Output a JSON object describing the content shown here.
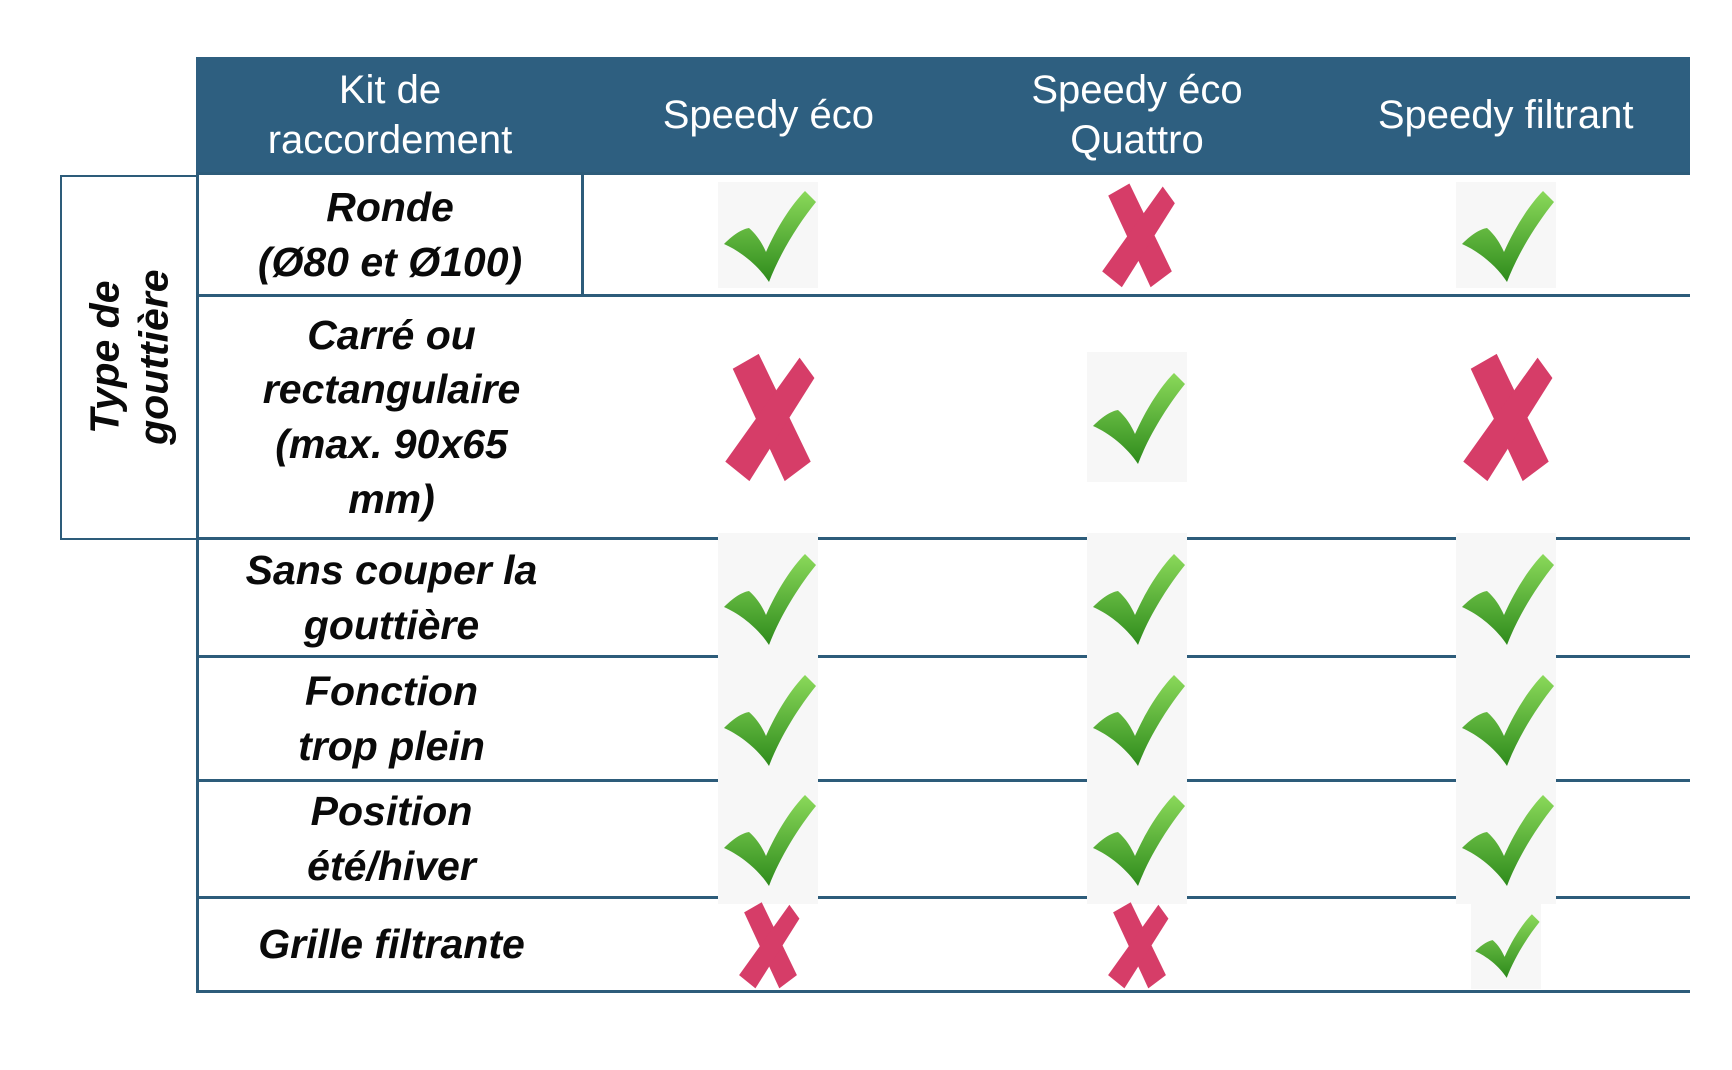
{
  "table": {
    "corner_header": "Kit de\nraccordement",
    "product_columns": [
      "Speedy éco",
      "Speedy éco\nQuattro",
      "Speedy filtrant"
    ],
    "row_group": {
      "label": "Type de\ngouttière",
      "applies_to_rows": [
        0,
        1
      ]
    },
    "rows": [
      {
        "label": "Ronde\n(Ø80 et Ø100)",
        "values": [
          "yes",
          "no",
          "yes"
        ]
      },
      {
        "label": "Carré ou\nrectangulaire\n(max. 90x65\nmm)",
        "values": [
          "no",
          "yes",
          "no"
        ]
      },
      {
        "label": "Sans couper la\ngouttière",
        "values": [
          "yes",
          "yes",
          "yes"
        ]
      },
      {
        "label": "Fonction\ntrop plein",
        "values": [
          "yes",
          "yes",
          "yes"
        ]
      },
      {
        "label": "Position\nété/hiver",
        "values": [
          "yes",
          "yes",
          "yes"
        ]
      },
      {
        "label": "Grille filtrante",
        "values": [
          "no",
          "no",
          "yes"
        ]
      }
    ],
    "legend": {
      "yes": "check-icon",
      "no": "cross-icon"
    },
    "colors": {
      "page_bg": "#FFFFFF",
      "header_bg": "#2E5F80",
      "header_text": "#FFFFFF",
      "grid_border": "#2D5C7A",
      "check_green_top": "#8BD95A",
      "check_green_bottom": "#2E8B1C",
      "check_chip_bg": "#F7F7F7",
      "cross_pink": "#D63D68",
      "label_text": "#0A0A0A"
    }
  }
}
